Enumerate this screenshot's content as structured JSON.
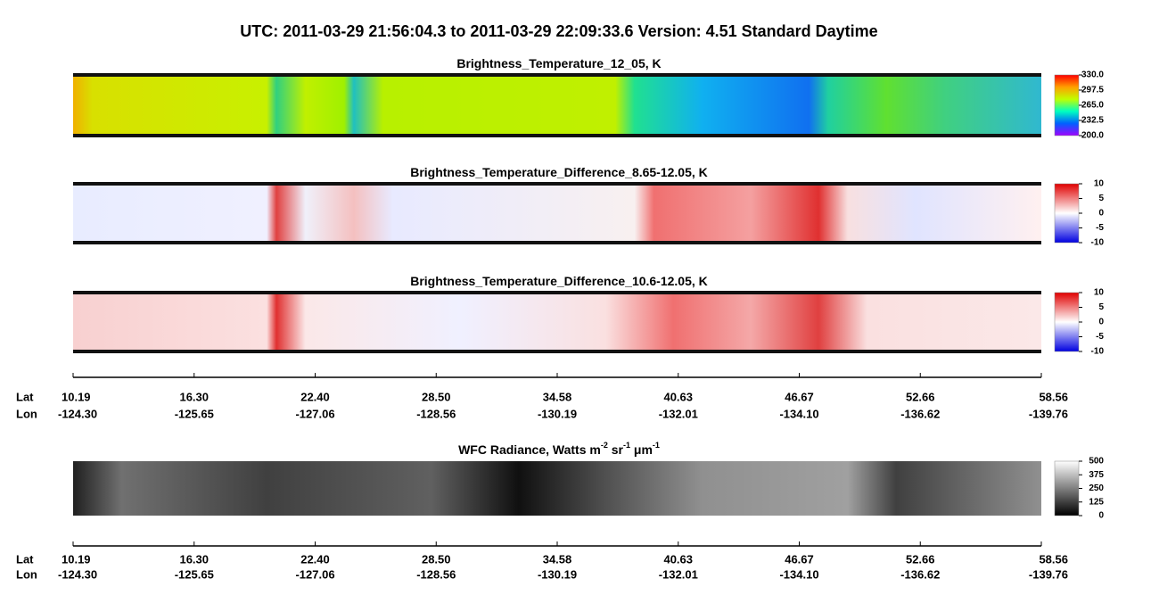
{
  "title": "UTC:  2011-03-29   21:56:04.3  to  2011-03-29   22:09:33.6    Version: 4.51  Standard Daytime",
  "panels": [
    {
      "title_parts": [
        "Brightness_Temperature_12_05, K"
      ],
      "scale": "rainbow",
      "lim": [
        200,
        330
      ],
      "ticks": [
        {
          "value": 330,
          "label": "330.0"
        },
        {
          "value": 297.5,
          "label": "297.5"
        },
        {
          "value": 265,
          "label": "265.0"
        },
        {
          "value": 232.5,
          "label": "232.5"
        },
        {
          "value": 200,
          "label": "200.0"
        }
      ]
    },
    {
      "title_parts": [
        "Brightness_Temperature_Difference_8.65-12.05, K"
      ],
      "scale": "diverging",
      "lim": [
        -10,
        10
      ],
      "ticks": [
        10,
        5,
        0,
        -5,
        -10
      ]
    },
    {
      "title_parts": [
        "Brightness_Temperature_Difference_10.6-12.05, K"
      ],
      "scale": "diverging",
      "lim": [
        -10,
        10
      ],
      "ticks": [
        10,
        5,
        0,
        -5,
        -10
      ]
    },
    {
      "title_parts": [
        "WFC Radiance, Watts m",
        "-2",
        " sr",
        "-1",
        " μm",
        "-1"
      ],
      "scale": "gray",
      "lim": [
        0,
        500
      ],
      "ticks": [
        500,
        375,
        250,
        125,
        0
      ]
    }
  ],
  "axis": {
    "lat_label": "Lat",
    "lon_label": "Lon",
    "lat": [
      "10.19",
      "16.30",
      "22.40",
      "28.50",
      "34.58",
      "40.63",
      "46.67",
      "52.66",
      "58.56"
    ],
    "lon": [
      "-124.30",
      "-125.65",
      "-127.06",
      "-128.56",
      "-130.19",
      "-132.01",
      "-134.10",
      "-136.62",
      "-139.76"
    ]
  }
}
